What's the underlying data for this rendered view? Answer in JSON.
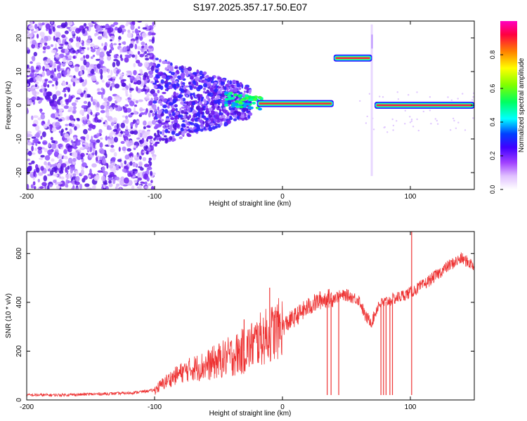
{
  "title": "S197.2025.357.17.50.E07",
  "chart_data": [
    {
      "type": "heatmap",
      "name": "spectrogram",
      "xlabel": "Height of straight line (km)",
      "ylabel": "Frequency (Hz)",
      "xlim": [
        -200,
        150
      ],
      "ylim": [
        -25,
        25
      ],
      "xticks": [
        -200,
        -100,
        0,
        100
      ],
      "xticklabels": [
        "-200",
        "-100",
        "0",
        "100"
      ],
      "yticks": [
        -20,
        -10,
        0,
        10,
        20
      ],
      "yticklabels": [
        "-20",
        "-10",
        "0",
        "10",
        "20"
      ],
      "colorbar": {
        "label": "Normalized spectral amplitude",
        "range": [
          0,
          1
        ],
        "ticks": [
          0.0,
          0.2,
          0.4,
          0.6,
          0.8
        ],
        "ticklabels": [
          "0.0",
          "0.2",
          "0.4",
          "0.6",
          "0.8"
        ],
        "colors": [
          "#ffffff",
          "#e0c0ff",
          "#a040ff",
          "#4000ff",
          "#0040ff",
          "#00ffff",
          "#00ff60",
          "#80ff00",
          "#ffff00",
          "#ff8000",
          "#ff0040",
          "#ff00c0"
        ]
      },
      "features": [
        {
          "label": "noise",
          "x_range": [
            -200,
            -100
          ],
          "freq_range": [
            -25,
            25
          ],
          "amplitude": 0.1
        },
        {
          "label": "broadening",
          "x_range": [
            -100,
            -30
          ],
          "freq_range": [
            -8,
            10
          ],
          "amplitude": 0.25
        },
        {
          "label": "signal line",
          "x_range": [
            -30,
            40
          ],
          "freq": 0.5,
          "amplitude": 0.6
        },
        {
          "label": "strong line",
          "x_range": [
            40,
            70
          ],
          "freq": 14,
          "amplitude": 0.95
        },
        {
          "label": "signal line",
          "x_range": [
            70,
            150
          ],
          "freq": 0,
          "amplitude": 0.95
        }
      ]
    },
    {
      "type": "line",
      "name": "snr",
      "xlabel": "Height of straight line (km)",
      "ylabel": "SNR (10 * v/v)",
      "xlim": [
        -200,
        150
      ],
      "ylim": [
        0,
        690
      ],
      "xticks": [
        -200,
        -100,
        0,
        100
      ],
      "xticklabels": [
        "-200",
        "-100",
        "0",
        "100"
      ],
      "yticks": [
        0,
        200,
        400,
        600
      ],
      "yticklabels": [
        "0",
        "200",
        "400",
        "600"
      ],
      "color": "#ee3333",
      "series": [
        {
          "name": "SNR",
          "x": [
            -200,
            -180,
            -160,
            -140,
            -120,
            -100,
            -90,
            -80,
            -70,
            -60,
            -50,
            -40,
            -30,
            -20,
            -10,
            0,
            10,
            20,
            30,
            40,
            50,
            60,
            65,
            70,
            75,
            80,
            90,
            100,
            110,
            120,
            130,
            140,
            150
          ],
          "values": [
            20,
            20,
            22,
            25,
            28,
            40,
            80,
            110,
            130,
            140,
            160,
            180,
            200,
            240,
            270,
            300,
            340,
            380,
            410,
            420,
            430,
            410,
            340,
            320,
            390,
            400,
            420,
            440,
            470,
            510,
            550,
            580,
            550
          ]
        }
      ],
      "dropouts": [
        35,
        38,
        44,
        77,
        79,
        81,
        84,
        86,
        101
      ],
      "spikes": [
        {
          "x": 101,
          "value": 690
        },
        {
          "x": -30,
          "value": 330
        },
        {
          "x": -10,
          "value": 460
        }
      ]
    }
  ]
}
